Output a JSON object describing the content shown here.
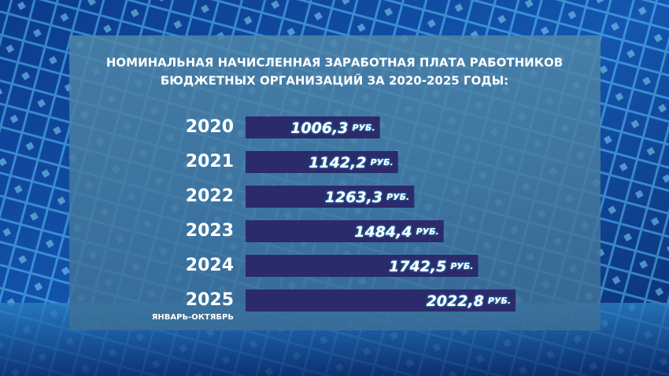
{
  "chart_data": {
    "type": "bar",
    "orientation": "horizontal",
    "title": [
      "НОМИНАЛЬНАЯ НАЧИСЛЕННАЯ ЗАРАБОТНАЯ ПЛАТА РАБОТНИКОВ",
      "БЮДЖЕТНЫХ ОРГАНИЗАЦИЙ ЗА 2020-2025 ГОДЫ:"
    ],
    "categories": [
      "2020",
      "2021",
      "2022",
      "2023",
      "2024",
      "2025"
    ],
    "annotation": "ЯНВАРЬ-ОКТЯБРЬ",
    "values": [
      1006.3,
      1142.2,
      1263.3,
      1484.4,
      1742.5,
      2022.8
    ],
    "value_labels": [
      "1006,3",
      "1142,2",
      "1263,3",
      "1484,4",
      "1742,5",
      "2022,8"
    ],
    "unit": "РУБ.",
    "color": "#2b2a6b"
  }
}
